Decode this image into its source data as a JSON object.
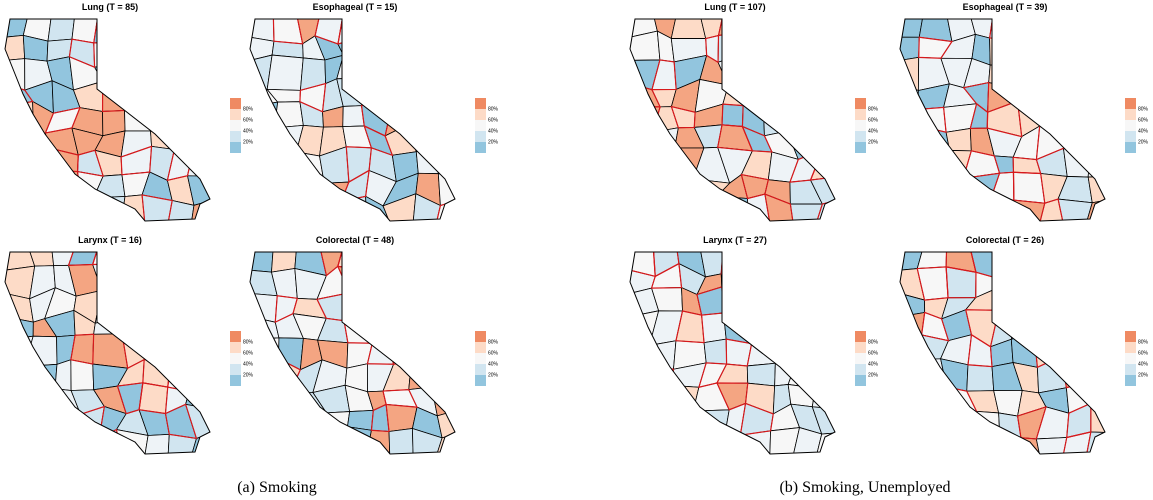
{
  "panels": [
    {
      "caption": "(a) Smoking",
      "maps": [
        {
          "title": "Lung (T = 85)"
        },
        {
          "title": "Esophageal (T = 15)"
        },
        {
          "title": "Larynx (T = 16)"
        },
        {
          "title": "Colorectal (T = 48)"
        }
      ]
    },
    {
      "caption": "(b) Smoking, Unemployed",
      "maps": [
        {
          "title": "Lung (T = 107)"
        },
        {
          "title": "Esophageal (T = 39)"
        },
        {
          "title": "Larynx (T = 27)"
        },
        {
          "title": "Colorectal (T = 26)"
        }
      ]
    }
  ],
  "legend": {
    "labels": [
      "80%",
      "60%",
      "40%",
      "20%"
    ]
  }
}
